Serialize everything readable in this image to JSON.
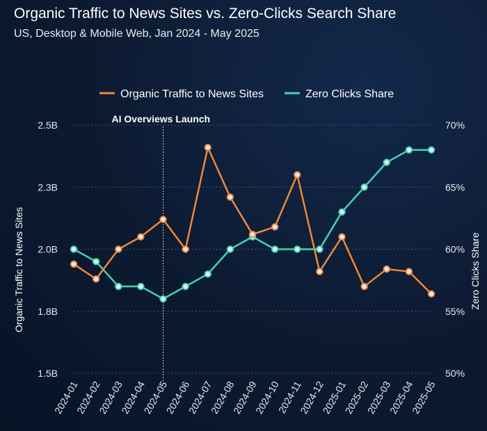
{
  "title": "Organic Traffic to News Sites vs. Zero-Clicks Search Share",
  "subtitle": "US, Desktop & Mobile Web, Jan 2024 - May 2025",
  "colors": {
    "background": "#0c1a30",
    "organic": "#f0873a",
    "zero_clicks": "#3fd6b2",
    "marker_fill": "#e4eaf0",
    "grid": "#5b6a82"
  },
  "chart_data": {
    "type": "line",
    "categories": [
      "2024-01",
      "2024-02",
      "2024-03",
      "2024-04",
      "2024-05",
      "2024-06",
      "2024-07",
      "2024-08",
      "2024-09",
      "2024-10",
      "2024-11",
      "2024-12",
      "2025-01",
      "2025-02",
      "2025-03",
      "2025-04",
      "2025-05"
    ],
    "series": [
      {
        "name": "Organic Traffic to News Sites",
        "axis": "left",
        "values": [
          1.94,
          1.88,
          2.0,
          2.05,
          2.12,
          2.0,
          2.41,
          2.21,
          2.06,
          2.09,
          2.3,
          1.91,
          2.05,
          1.85,
          1.92,
          1.91,
          1.82
        ]
      },
      {
        "name": "Zero Clicks Share",
        "axis": "right",
        "values": [
          60.0,
          59.0,
          57.0,
          57.0,
          56.0,
          57.0,
          58.0,
          60.0,
          61.0,
          60.0,
          60.0,
          60.0,
          63.0,
          65.0,
          67.0,
          68.0,
          68.0
        ]
      }
    ],
    "y_left": {
      "label": "Organic Traffic to News Sites",
      "ylim": [
        1.5,
        2.5
      ],
      "ticks": [
        1.5,
        1.75,
        2.0,
        2.25,
        2.5
      ],
      "tick_labels": [
        "1.5B",
        "1.8B",
        "2.0B",
        "2.3B",
        "2.5B"
      ]
    },
    "y_right": {
      "label": "Zero Clicks Share",
      "ylim": [
        50,
        70
      ],
      "ticks": [
        50,
        55,
        60,
        65,
        70
      ],
      "tick_labels": [
        "50%",
        "55%",
        "60%",
        "65%",
        "70%"
      ]
    },
    "grid": "horizontal dashed",
    "legend_position": "top-center",
    "annotations": [
      {
        "text": "AI Overviews Launch",
        "category": "2024-05"
      }
    ]
  }
}
